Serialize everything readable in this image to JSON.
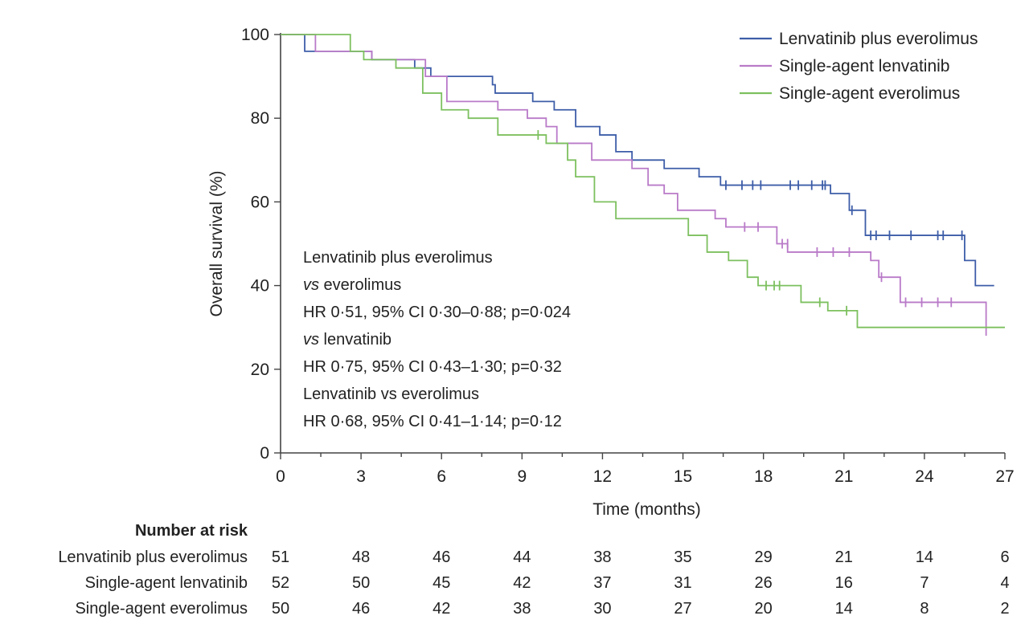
{
  "chart_data": {
    "type": "line",
    "subtype": "kaplan-meier",
    "xlabel": "Time (months)",
    "ylabel": "Overall survival (%)",
    "xlim": [
      0,
      27
    ],
    "ylim": [
      0,
      100
    ],
    "xticks": [
      "0",
      "3",
      "6",
      "9",
      "12",
      "15",
      "18",
      "21",
      "24",
      "27"
    ],
    "yticks": [
      "0",
      "20",
      "40",
      "60",
      "80",
      "100"
    ],
    "grid": false,
    "legend_position": "top-right",
    "series": [
      {
        "name": "Lenvatinib plus everolimus",
        "color": "#3d5da8",
        "steps": [
          [
            0,
            100
          ],
          [
            0.9,
            96
          ],
          [
            2.7,
            96
          ],
          [
            3.4,
            94
          ],
          [
            5.0,
            92
          ],
          [
            5.6,
            90
          ],
          [
            7.6,
            90
          ],
          [
            7.9,
            88
          ],
          [
            8.0,
            86
          ],
          [
            9.4,
            84
          ],
          [
            10.2,
            82
          ],
          [
            11.0,
            78
          ],
          [
            11.9,
            76
          ],
          [
            12.5,
            72
          ],
          [
            13.1,
            70
          ],
          [
            14.3,
            68
          ],
          [
            15.6,
            66
          ],
          [
            16.4,
            64
          ],
          [
            20.5,
            62
          ],
          [
            21.2,
            58
          ],
          [
            21.8,
            52
          ],
          [
            25.5,
            46
          ],
          [
            25.9,
            40
          ],
          [
            26.6,
            40
          ]
        ],
        "censored": [
          [
            16.6,
            64
          ],
          [
            17.2,
            64
          ],
          [
            17.6,
            64
          ],
          [
            17.9,
            64
          ],
          [
            19.0,
            64
          ],
          [
            19.3,
            64
          ],
          [
            19.8,
            64
          ],
          [
            20.2,
            64
          ],
          [
            20.3,
            64
          ],
          [
            21.3,
            58
          ],
          [
            22.0,
            52
          ],
          [
            22.2,
            52
          ],
          [
            22.7,
            52
          ],
          [
            23.5,
            52
          ],
          [
            24.5,
            52
          ],
          [
            24.7,
            52
          ],
          [
            25.4,
            52
          ]
        ]
      },
      {
        "name": "Single-agent lenvatinib",
        "color": "#b97ac8",
        "steps": [
          [
            0,
            100
          ],
          [
            1.3,
            96
          ],
          [
            3.4,
            94
          ],
          [
            5.4,
            90
          ],
          [
            6.2,
            84
          ],
          [
            8.1,
            82
          ],
          [
            9.2,
            80
          ],
          [
            9.9,
            78
          ],
          [
            10.3,
            74
          ],
          [
            11.6,
            70
          ],
          [
            13.1,
            68
          ],
          [
            13.7,
            64
          ],
          [
            14.3,
            62
          ],
          [
            14.8,
            58
          ],
          [
            16.2,
            56
          ],
          [
            16.6,
            54
          ],
          [
            18.5,
            50
          ],
          [
            18.9,
            48
          ],
          [
            22.0,
            46
          ],
          [
            22.3,
            42
          ],
          [
            23.1,
            36
          ],
          [
            26.3,
            28
          ]
        ],
        "censored": [
          [
            17.3,
            54
          ],
          [
            17.8,
            54
          ],
          [
            18.7,
            50
          ],
          [
            18.9,
            50
          ],
          [
            20.0,
            48
          ],
          [
            20.6,
            48
          ],
          [
            21.2,
            48
          ],
          [
            22.4,
            42
          ],
          [
            23.3,
            36
          ],
          [
            23.9,
            36
          ],
          [
            24.5,
            36
          ],
          [
            25.0,
            36
          ]
        ]
      },
      {
        "name": "Single-agent everolimus",
        "color": "#7dc05f",
        "steps": [
          [
            0,
            100
          ],
          [
            2.6,
            96
          ],
          [
            3.1,
            94
          ],
          [
            4.3,
            92
          ],
          [
            5.3,
            86
          ],
          [
            6.0,
            82
          ],
          [
            7.0,
            80
          ],
          [
            8.1,
            76
          ],
          [
            9.9,
            74
          ],
          [
            10.7,
            70
          ],
          [
            11.0,
            66
          ],
          [
            11.7,
            60
          ],
          [
            12.5,
            56
          ],
          [
            15.2,
            52
          ],
          [
            15.9,
            48
          ],
          [
            16.7,
            46
          ],
          [
            17.4,
            42
          ],
          [
            17.8,
            40
          ],
          [
            19.4,
            36
          ],
          [
            20.4,
            34
          ],
          [
            21.5,
            30
          ],
          [
            27,
            30
          ]
        ],
        "censored": [
          [
            9.6,
            76
          ],
          [
            18.1,
            40
          ],
          [
            18.4,
            40
          ],
          [
            18.6,
            40
          ],
          [
            20.1,
            36
          ],
          [
            21.1,
            34
          ]
        ]
      }
    ],
    "stats_lines": [
      "Lenvatinib plus everolimus",
      "vs everolimus",
      "HR 0·51, 95% CI 0·30–0·88; p=0·024",
      "vs lenvatinib",
      "HR 0·75, 95% CI 0·43–1·30; p=0·32",
      "Lenvatinib vs everolimus",
      "HR 0·68, 95% CI 0·41–1·14; p=0·12"
    ],
    "risk_table": {
      "title": "Number at risk",
      "rows": [
        {
          "label": "Lenvatinib plus everolimus",
          "values": [
            "51",
            "48",
            "46",
            "44",
            "38",
            "35",
            "29",
            "21",
            "14",
            "6"
          ]
        },
        {
          "label": "Single-agent lenvatinib",
          "values": [
            "52",
            "50",
            "45",
            "42",
            "37",
            "31",
            "26",
            "16",
            "7",
            "4"
          ]
        },
        {
          "label": "Single-agent everolimus",
          "values": [
            "50",
            "46",
            "42",
            "38",
            "30",
            "27",
            "20",
            "14",
            "8",
            "2"
          ]
        }
      ]
    }
  }
}
